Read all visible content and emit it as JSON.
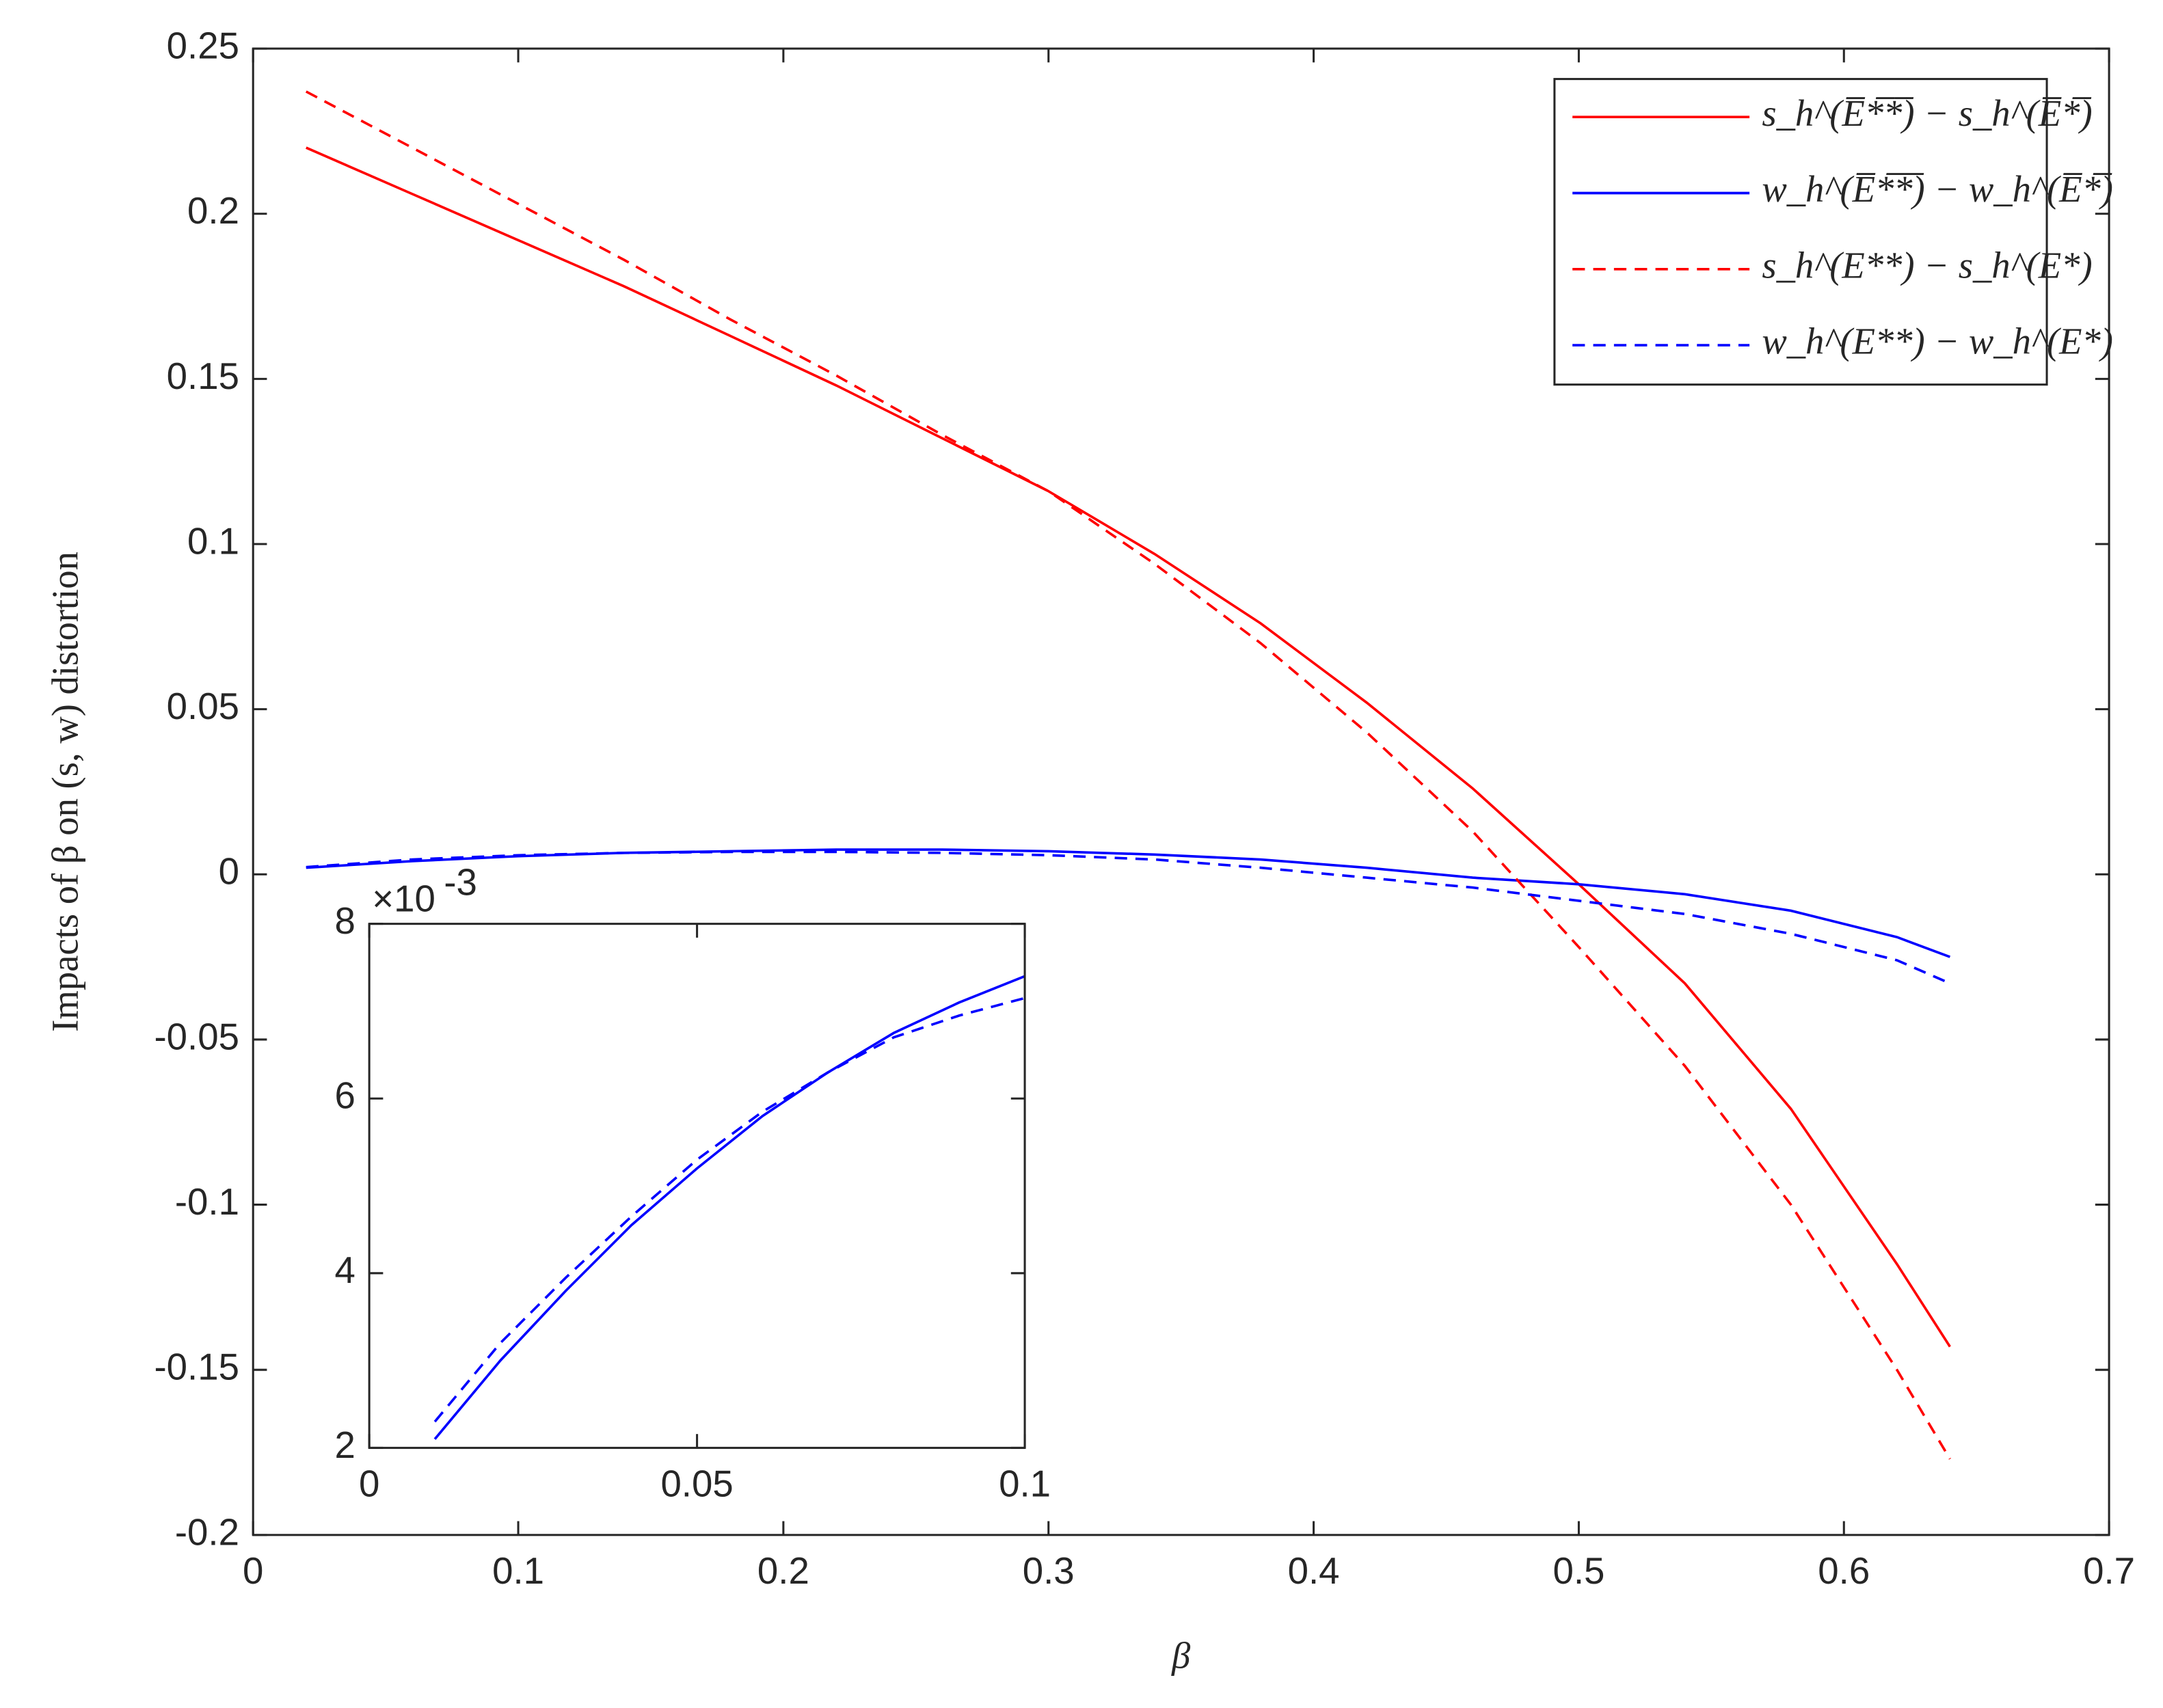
{
  "chart_data": [
    {
      "type": "line",
      "x_label": "β",
      "y_label": "Impacts of β on (s, w) distortion",
      "xlim": [
        0,
        0.7
      ],
      "xticks": [
        0,
        0.1,
        0.2,
        0.3,
        0.4,
        0.5,
        0.6,
        0.7
      ],
      "ylim": [
        -0.2,
        0.25
      ],
      "yticks": [
        -0.2,
        -0.15,
        -0.1,
        -0.05,
        0,
        0.05,
        0.1,
        0.15,
        0.2,
        0.25
      ],
      "legend": "top-right",
      "x": [
        0.02,
        0.06,
        0.1,
        0.14,
        0.18,
        0.22,
        0.26,
        0.3,
        0.34,
        0.38,
        0.42,
        0.46,
        0.5,
        0.54,
        0.58,
        0.62,
        0.64
      ],
      "series": [
        {
          "name": "s_h^(E̅*̅*̅) − s_h^(E̅*̅)",
          "color": "#ff0000",
          "dash": false,
          "values": [
            0.22,
            0.206,
            0.192,
            0.178,
            0.163,
            0.148,
            0.132,
            0.116,
            0.097,
            0.076,
            0.052,
            0.026,
            -0.003,
            -0.033,
            -0.071,
            -0.118,
            -0.143
          ]
        },
        {
          "name": "w_h^(E̅*̅*̅) − w_h^(E̅*̅)",
          "color": "#0000ff",
          "dash": false,
          "values": [
            0.002,
            0.004,
            0.0055,
            0.0065,
            0.007,
            0.0075,
            0.0075,
            0.007,
            0.006,
            0.0045,
            0.002,
            -0.001,
            -0.003,
            -0.006,
            -0.011,
            -0.019,
            -0.025
          ]
        },
        {
          "name": "s_h^(E**) − s_h^(E*)",
          "color": "#ff0000",
          "dash": true,
          "values": [
            0.237,
            0.22,
            0.203,
            0.186,
            0.168,
            0.151,
            0.133,
            0.116,
            0.094,
            0.07,
            0.043,
            0.013,
            -0.022,
            -0.058,
            -0.1,
            -0.15,
            -0.177
          ]
        },
        {
          "name": "w_h^(E**) − w_h^(E*)",
          "color": "#0000ff",
          "dash": true,
          "values": [
            0.0022,
            0.0045,
            0.0058,
            0.0065,
            0.0068,
            0.0068,
            0.0065,
            0.0058,
            0.0045,
            0.002,
            -0.001,
            -0.004,
            -0.008,
            -0.012,
            -0.018,
            -0.026,
            -0.033
          ]
        }
      ]
    },
    {
      "type": "line",
      "y_scale_base": "×10",
      "y_scale_exponent": "-3",
      "xlim": [
        0,
        0.1
      ],
      "xticks": [
        0,
        0.05,
        0.1
      ],
      "ylim": [
        2,
        8
      ],
      "yticks": [
        2,
        4,
        6,
        8
      ],
      "x": [
        0.01,
        0.02,
        0.03,
        0.04,
        0.05,
        0.06,
        0.07,
        0.08,
        0.09,
        0.1
      ],
      "series": [
        {
          "color": "#0000ff",
          "dash": false,
          "values": [
            2.1,
            3.0,
            3.8,
            4.55,
            5.2,
            5.8,
            6.3,
            6.75,
            7.1,
            7.4
          ]
        },
        {
          "color": "#0000ff",
          "dash": true,
          "values": [
            2.3,
            3.2,
            3.95,
            4.65,
            5.3,
            5.85,
            6.3,
            6.7,
            6.95,
            7.15
          ]
        }
      ]
    }
  ]
}
